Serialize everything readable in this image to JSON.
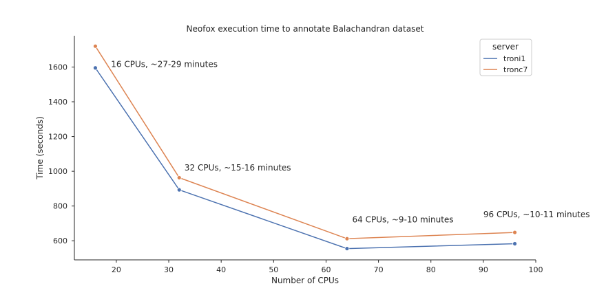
{
  "chart_data": {
    "type": "line",
    "title": "Neofox execution time to annotate Balachandran dataset",
    "xlabel": "Number of CPUs",
    "ylabel": "Time (seconds)",
    "xlim": [
      12,
      100
    ],
    "ylim": [
      490,
      1780
    ],
    "xticks": [
      20,
      30,
      40,
      50,
      60,
      70,
      80,
      90,
      100
    ],
    "yticks": [
      600,
      800,
      1000,
      1200,
      1400,
      1600
    ],
    "grid": false,
    "legend": {
      "title": "server",
      "placement": "top-right"
    },
    "x": [
      16,
      32,
      64,
      96
    ],
    "series": [
      {
        "name": "troni1",
        "color": "#4c72b0",
        "values": [
          1595,
          893,
          555,
          583
        ]
      },
      {
        "name": "tronc7",
        "color": "#dd8452",
        "values": [
          1720,
          963,
          612,
          648
        ]
      }
    ],
    "annotations": [
      {
        "text": "16 CPUs, ~27-29 minutes",
        "x": 19,
        "y": 1600
      },
      {
        "text": "32 CPUs, ~15-16 minutes",
        "x": 33,
        "y": 1005
      },
      {
        "text": "64 CPUs, ~9-10 minutes",
        "x": 65,
        "y": 705
      },
      {
        "text": "96 CPUs, ~10-11 minutes",
        "x": 90,
        "y": 735
      }
    ]
  }
}
